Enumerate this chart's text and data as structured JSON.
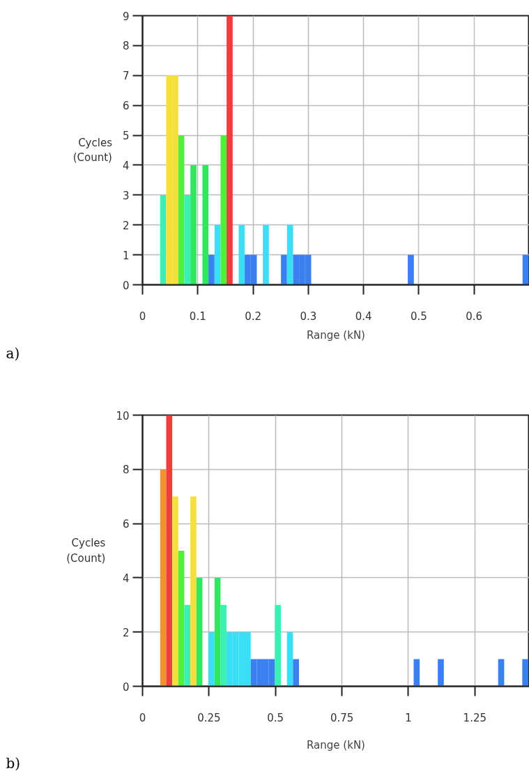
{
  "chart_data": [
    {
      "type": "histogram",
      "xlabel": "Range (kN)",
      "ylabel": "Cycles\n(Count)",
      "annotations": [
        "a)"
      ],
      "grid": true,
      "xlim": [
        0,
        0.7
      ],
      "xticks": [
        0,
        0.1,
        0.2,
        0.3,
        0.4,
        0.5,
        0.6
      ],
      "ylim": [
        0,
        9
      ],
      "yticks": [
        0,
        1,
        2,
        3,
        4,
        5,
        6,
        7,
        8,
        9
      ],
      "bins": [
        0.0319,
        0.0428,
        0.0538,
        0.0647,
        0.0756,
        0.0866,
        0.0975,
        0.1084,
        0.1193,
        0.1303,
        0.1412,
        0.1521,
        0.1631,
        0.174,
        0.1849,
        0.1959,
        0.2068,
        0.2177,
        0.2286,
        0.2396,
        0.2505,
        0.2614,
        0.2724,
        0.2833,
        0.2942,
        0.3052,
        0.3161,
        0.327,
        0.3379,
        0.3489,
        0.3598,
        0.3707,
        0.3817,
        0.3926,
        0.4035,
        0.4145,
        0.4254,
        0.4363,
        0.4472,
        0.4582,
        0.4691,
        0.48,
        0.491,
        0.5019,
        0.5128,
        0.5238,
        0.5347,
        0.5456,
        0.5565,
        0.5675,
        0.5784,
        0.5893,
        0.6003,
        0.6112,
        0.6221,
        0.6331,
        0.644,
        0.6549,
        0.6658,
        0.6768,
        0.6877,
        0.6986
      ],
      "values": [
        3,
        7,
        7,
        5,
        3,
        4,
        0,
        4,
        1,
        2,
        5,
        9,
        0,
        2,
        1,
        1,
        0,
        2,
        0,
        0,
        1,
        2,
        1,
        1,
        1,
        0,
        0,
        0,
        0,
        0,
        0,
        0,
        0,
        0,
        0,
        0,
        0,
        0,
        0,
        0,
        0,
        1,
        0,
        0,
        0,
        0,
        0,
        0,
        0,
        0,
        0,
        0,
        0,
        0,
        0,
        0,
        0,
        0,
        0,
        0,
        1
      ],
      "colors": [
        "#3cf0b4",
        "#f5e03a",
        "#f5e03a",
        "#4ef03a",
        "#3cf0b4",
        "#30e860",
        null,
        "#30e860",
        "#3a80f0",
        "#38dff5",
        "#4ef03a",
        "#f53c3c",
        null,
        "#38dff5",
        "#3a80f0",
        "#3a80f0",
        null,
        "#38dff5",
        null,
        null,
        "#3a80f0",
        "#38dff5",
        "#3a80f0",
        "#3a80f0",
        "#3a80f0",
        null,
        null,
        null,
        null,
        null,
        null,
        null,
        null,
        null,
        null,
        null,
        null,
        null,
        null,
        null,
        null,
        "#3a80f0",
        null,
        null,
        null,
        null,
        null,
        null,
        null,
        null,
        null,
        null,
        null,
        null,
        null,
        null,
        null,
        null,
        null,
        null,
        "#3a80f0"
      ]
    },
    {
      "type": "histogram",
      "xlabel": "Range (kN)",
      "ylabel": "Cycles\n(Count)",
      "annotations": [
        "b)"
      ],
      "grid": true,
      "xlim": [
        0,
        1.455
      ],
      "xticks": [
        0,
        0.25,
        0.5,
        0.75,
        1,
        1.25
      ],
      "ylim": [
        0,
        10
      ],
      "yticks": [
        0,
        2,
        4,
        6,
        8,
        10
      ],
      "bins": [
        0.0664,
        0.0891,
        0.1118,
        0.1345,
        0.1572,
        0.1799,
        0.2026,
        0.2253,
        0.248,
        0.2707,
        0.2934,
        0.3161,
        0.3388,
        0.3615,
        0.3842,
        0.4069,
        0.4296,
        0.4523,
        0.475,
        0.4977,
        0.5204,
        0.5431,
        0.5658,
        0.5885,
        0.6112,
        0.6339,
        0.6566,
        0.6793,
        0.702,
        0.7247,
        0.7474,
        0.7701,
        0.7928,
        0.8155,
        0.8382,
        0.8609,
        0.8836,
        0.9063,
        0.929,
        0.9517,
        0.9744,
        0.9971,
        1.0198,
        1.0425,
        1.0652,
        1.0879,
        1.1106,
        1.1333,
        1.156,
        1.1787,
        1.2014,
        1.2241,
        1.2468,
        1.2695,
        1.2922,
        1.3149,
        1.3376,
        1.3603,
        1.383,
        1.4057,
        1.4284,
        1.4511
      ],
      "values": [
        8,
        10,
        7,
        5,
        3,
        7,
        4,
        0,
        2,
        4,
        3,
        2,
        2,
        2,
        2,
        1,
        1,
        1,
        1,
        3,
        0,
        2,
        1,
        0,
        0,
        0,
        0,
        0,
        0,
        0,
        0,
        0,
        0,
        0,
        0,
        0,
        0,
        0,
        0,
        0,
        0,
        0,
        1,
        0,
        0,
        0,
        1,
        0,
        0,
        0,
        0,
        0,
        0,
        0,
        0,
        0,
        1,
        0,
        0,
        0,
        1
      ],
      "colors": [
        "#f5902e",
        "#f53c3c",
        "#f5e03a",
        "#4ef03a",
        "#3cf0b4",
        "#f5e03a",
        "#30e860",
        null,
        "#38dff5",
        "#30e860",
        "#3cf0b4",
        "#38dff5",
        "#38dff5",
        "#38dff5",
        "#38dff5",
        "#3a80f0",
        "#3a80f0",
        "#3a80f0",
        "#3a80f0",
        "#3cf0b4",
        null,
        "#38dff5",
        "#3a80f0",
        null,
        null,
        null,
        null,
        null,
        null,
        null,
        null,
        null,
        null,
        null,
        null,
        null,
        null,
        null,
        null,
        null,
        null,
        null,
        "#3a80f0",
        null,
        null,
        null,
        "#3a80f0",
        null,
        null,
        null,
        null,
        null,
        null,
        null,
        null,
        null,
        "#3a80f0",
        null,
        null,
        null,
        "#3a80f0"
      ]
    }
  ]
}
